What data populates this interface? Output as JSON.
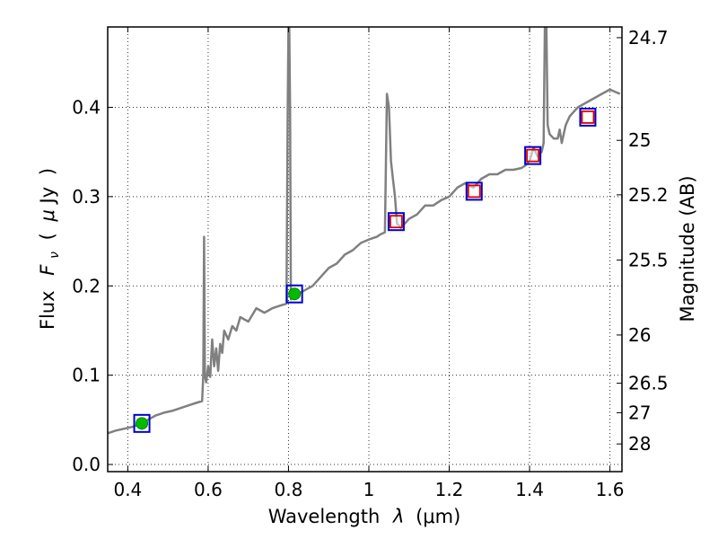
{
  "chart_data": {
    "type": "line",
    "xlabel": "Wavelength  λ (μm)",
    "ylabel": "Flux  F_ν  ( μJy )",
    "ylabel_parts": {
      "pre": "Flux",
      "var": "F",
      "sub": "ν",
      "open": "(",
      "mu": "μ",
      "unit": "Jy",
      "close": ")"
    },
    "xlabel_parts": {
      "pre": "Wavelength",
      "var": "λ",
      "unit": "(μm)"
    },
    "y2label": "Magnitude (AB)",
    "xlim": [
      0.35,
      1.63
    ],
    "ylim": [
      -0.008,
      0.49
    ],
    "grid": true,
    "x_ticks": [
      {
        "value": 0.4,
        "label": "0.4"
      },
      {
        "value": 0.6,
        "label": "0.6"
      },
      {
        "value": 0.8,
        "label": "0.8"
      },
      {
        "value": 1.0,
        "label": "1"
      },
      {
        "value": 1.2,
        "label": "1.2"
      },
      {
        "value": 1.4,
        "label": "1.4"
      },
      {
        "value": 1.6,
        "label": "1.6"
      }
    ],
    "y_ticks": [
      {
        "value": 0.0,
        "label": "0.0"
      },
      {
        "value": 0.1,
        "label": "0.1"
      },
      {
        "value": 0.2,
        "label": "0.2"
      },
      {
        "value": 0.3,
        "label": "0.3"
      },
      {
        "value": 0.4,
        "label": "0.4"
      }
    ],
    "right_ticks": [
      {
        "flux": 0.478,
        "label": "24.7"
      },
      {
        "flux": 0.363,
        "label": "25"
      },
      {
        "flux": 0.302,
        "label": "25.2"
      },
      {
        "flux": 0.229,
        "label": "25.5"
      },
      {
        "flux": 0.145,
        "label": "26"
      },
      {
        "flux": 0.091,
        "label": "26.5"
      },
      {
        "flux": 0.058,
        "label": "27"
      },
      {
        "flux": 0.023,
        "label": "28"
      }
    ],
    "series": [
      {
        "style": "line",
        "color": "#808080",
        "points": [
          [
            0.35,
            0.035
          ],
          [
            0.37,
            0.038
          ],
          [
            0.39,
            0.04
          ],
          [
            0.41,
            0.042
          ],
          [
            0.43,
            0.045
          ],
          [
            0.45,
            0.05
          ],
          [
            0.47,
            0.055
          ],
          [
            0.49,
            0.058
          ],
          [
            0.51,
            0.06
          ],
          [
            0.53,
            0.063
          ],
          [
            0.55,
            0.066
          ],
          [
            0.57,
            0.069
          ],
          [
            0.585,
            0.071
          ],
          [
            0.588,
            0.1
          ],
          [
            0.59,
            0.255
          ],
          [
            0.592,
            0.1
          ],
          [
            0.595,
            0.092
          ],
          [
            0.6,
            0.11
          ],
          [
            0.605,
            0.098
          ],
          [
            0.61,
            0.14
          ],
          [
            0.615,
            0.11
          ],
          [
            0.62,
            0.13
          ],
          [
            0.625,
            0.105
          ],
          [
            0.63,
            0.135
          ],
          [
            0.635,
            0.125
          ],
          [
            0.64,
            0.15
          ],
          [
            0.65,
            0.14
          ],
          [
            0.66,
            0.155
          ],
          [
            0.67,
            0.15
          ],
          [
            0.68,
            0.165
          ],
          [
            0.7,
            0.16
          ],
          [
            0.72,
            0.175
          ],
          [
            0.74,
            0.17
          ],
          [
            0.76,
            0.175
          ],
          [
            0.78,
            0.178
          ],
          [
            0.795,
            0.18
          ],
          [
            0.798,
            0.4
          ],
          [
            0.8,
            0.49
          ],
          [
            0.802,
            0.49
          ],
          [
            0.804,
            0.4
          ],
          [
            0.806,
            0.185
          ],
          [
            0.82,
            0.19
          ],
          [
            0.84,
            0.195
          ],
          [
            0.86,
            0.2
          ],
          [
            0.88,
            0.21
          ],
          [
            0.9,
            0.22
          ],
          [
            0.92,
            0.225
          ],
          [
            0.94,
            0.235
          ],
          [
            0.96,
            0.24
          ],
          [
            0.98,
            0.248
          ],
          [
            1.0,
            0.252
          ],
          [
            1.02,
            0.255
          ],
          [
            1.03,
            0.258
          ],
          [
            1.04,
            0.26
          ],
          [
            1.045,
            0.415
          ],
          [
            1.05,
            0.4
          ],
          [
            1.055,
            0.34
          ],
          [
            1.06,
            0.32
          ],
          [
            1.065,
            0.3
          ],
          [
            1.07,
            0.27
          ],
          [
            1.08,
            0.265
          ],
          [
            1.1,
            0.275
          ],
          [
            1.12,
            0.28
          ],
          [
            1.14,
            0.29
          ],
          [
            1.16,
            0.29
          ],
          [
            1.18,
            0.296
          ],
          [
            1.2,
            0.3
          ],
          [
            1.22,
            0.31
          ],
          [
            1.24,
            0.315
          ],
          [
            1.26,
            0.31
          ],
          [
            1.28,
            0.32
          ],
          [
            1.3,
            0.325
          ],
          [
            1.32,
            0.325
          ],
          [
            1.34,
            0.33
          ],
          [
            1.36,
            0.33
          ],
          [
            1.38,
            0.332
          ],
          [
            1.39,
            0.335
          ],
          [
            1.4,
            0.34
          ],
          [
            1.41,
            0.355
          ],
          [
            1.42,
            0.345
          ],
          [
            1.43,
            0.35
          ],
          [
            1.435,
            0.36
          ],
          [
            1.438,
            0.49
          ],
          [
            1.442,
            0.49
          ],
          [
            1.445,
            0.38
          ],
          [
            1.45,
            0.37
          ],
          [
            1.46,
            0.365
          ],
          [
            1.47,
            0.365
          ],
          [
            1.475,
            0.375
          ],
          [
            1.48,
            0.36
          ],
          [
            1.49,
            0.38
          ],
          [
            1.5,
            0.39
          ],
          [
            1.51,
            0.395
          ],
          [
            1.52,
            0.4
          ],
          [
            1.54,
            0.405
          ],
          [
            1.56,
            0.41
          ],
          [
            1.58,
            0.415
          ],
          [
            1.6,
            0.42
          ],
          [
            1.61,
            0.418
          ],
          [
            1.625,
            0.415
          ]
        ]
      },
      {
        "style": "blue-square",
        "color": "#0000cc",
        "points": [
          [
            0.435,
            0.046
          ],
          [
            0.815,
            0.191
          ],
          [
            1.068,
            0.272
          ],
          [
            1.262,
            0.306
          ],
          [
            1.408,
            0.346
          ],
          [
            1.545,
            0.389
          ]
        ]
      },
      {
        "style": "green-dot",
        "color": "#00bb00",
        "points": [
          [
            0.435,
            0.046
          ],
          [
            0.815,
            0.191
          ]
        ]
      },
      {
        "style": "red-square",
        "color": "#dd0000",
        "points": [
          [
            1.068,
            0.272
          ],
          [
            1.262,
            0.306
          ],
          [
            1.408,
            0.346
          ],
          [
            1.545,
            0.389
          ]
        ]
      }
    ]
  }
}
